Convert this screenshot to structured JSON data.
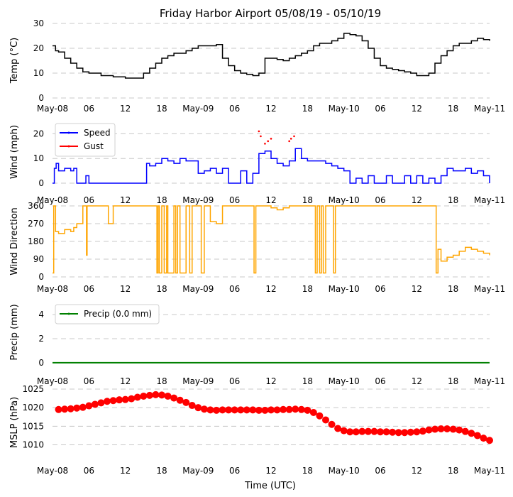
{
  "chart_data": {
    "title": "Friday Harbor Airport 05/08/19 - 05/10/19",
    "xlabel": "Time (UTC)",
    "x_ticks": [
      "May-08",
      "06",
      "12",
      "18",
      "May-09",
      "06",
      "12",
      "18",
      "May-10",
      "06",
      "12",
      "18",
      "May-11"
    ],
    "x_range_hours": [
      0,
      72
    ],
    "panels": [
      {
        "id": "temp",
        "type": "line",
        "ylabel": "Temp (°C)",
        "ylim": [
          0,
          30
        ],
        "yticks": [
          0,
          10,
          20,
          30
        ],
        "grid": true,
        "color": "#000000",
        "series": [
          {
            "x": [
              0,
              0.5,
              1,
              2,
              3,
              4,
              5,
              6,
              7,
              8,
              9,
              10,
              11,
              12,
              13,
              14,
              15,
              16,
              17,
              18,
              19,
              20,
              21,
              22,
              23,
              24,
              25,
              26,
              27,
              28,
              29,
              30,
              31,
              32,
              33,
              34,
              35,
              36,
              37,
              38,
              39,
              40,
              41,
              42,
              43,
              44,
              45,
              46,
              47,
              48,
              49,
              50,
              51,
              52,
              53,
              54,
              55,
              56,
              57,
              58,
              59,
              60,
              61,
              62,
              63,
              64,
              65,
              66,
              67,
              68,
              69,
              70,
              71,
              72
            ],
            "y": [
              21,
              19,
              18.5,
              16,
              14,
              12,
              10.5,
              10,
              10,
              9,
              9,
              8.5,
              8.5,
              8,
              8,
              8,
              10,
              12,
              14,
              16,
              17,
              18,
              18,
              19,
              20,
              21,
              21,
              21,
              21.5,
              16,
              13,
              11,
              10,
              9.5,
              9,
              10,
              16,
              16,
              15.5,
              15,
              16,
              17,
              18,
              19,
              21,
              22,
              22,
              23,
              24,
              26,
              25.5,
              25,
              23,
              20,
              16,
              13,
              12,
              11.5,
              11,
              10.5,
              10,
              9,
              9,
              10,
              14,
              17,
              19,
              21,
              22,
              22,
              23,
              24,
              23.5,
              23
            ]
          }
        ]
      },
      {
        "id": "wind",
        "type": "line",
        "ylabel": "Wind (mph)",
        "ylim": [
          0,
          25
        ],
        "yticks": [
          0,
          10,
          20
        ],
        "grid": true,
        "legend_position": "top-left",
        "series": [
          {
            "name": "Speed",
            "color": "#0000ff",
            "x": [
              0,
              0.3,
              0.6,
              1,
              2,
              3,
              3.5,
              4,
              5,
              5.5,
              6,
              6.2,
              7,
              9,
              11,
              13,
              15,
              15.5,
              16,
              17,
              18,
              19,
              20,
              21,
              22,
              23,
              24,
              25,
              26,
              27,
              28,
              29,
              30,
              31,
              32,
              33,
              34,
              35,
              36,
              37,
              38,
              39,
              40,
              41,
              42,
              43,
              44,
              45,
              46,
              47,
              48,
              49,
              50,
              51,
              52,
              53,
              54,
              55,
              56,
              57,
              58,
              59,
              60,
              61,
              62,
              63,
              64,
              65,
              66,
              67,
              68,
              69,
              70,
              71,
              72
            ],
            "y": [
              0,
              6,
              8,
              5,
              6,
              5,
              6,
              0,
              0,
              3,
              0,
              0,
              0,
              0,
              0,
              0,
              0,
              8,
              7,
              8,
              10,
              9,
              8,
              10,
              9,
              9,
              4,
              5,
              6,
              4,
              6,
              0,
              0,
              5,
              0,
              4,
              12,
              13,
              10,
              8,
              7,
              9,
              14,
              10,
              9,
              9,
              9,
              8,
              7,
              6,
              5,
              0,
              2,
              0,
              3,
              0,
              0,
              3,
              0,
              0,
              3,
              0,
              3,
              0,
              2,
              0,
              3,
              6,
              5,
              5,
              6,
              4,
              5,
              3,
              0
            ]
          },
          {
            "name": "Gust",
            "color": "#ff0000",
            "style": "points",
            "x": [
              34,
              34.3,
              35,
              35.5,
              36,
              39,
              39.3,
              39.8
            ],
            "y": [
              21,
              19,
              16,
              17,
              18,
              17,
              18,
              19
            ]
          }
        ]
      },
      {
        "id": "direction",
        "type": "line",
        "ylabel": "Wind Direction",
        "ylim": [
          0,
          360
        ],
        "yticks": [
          0,
          90,
          180,
          270,
          360
        ],
        "grid": true,
        "color": "#ffa500",
        "series": [
          {
            "x": [
              0,
              0.2,
              0.5,
              1,
              2,
              3,
              3.5,
              4,
              5,
              5.5,
              5.6,
              5.7,
              6,
              9,
              9.2,
              9.6,
              10,
              14,
              17,
              17.2,
              17.4,
              17.6,
              18,
              18.4,
              18.8,
              19,
              20,
              20.3,
              20.6,
              21,
              22,
              22.3,
              22.6,
              23,
              24,
              24.5,
              25,
              26,
              27,
              27.5,
              28,
              29,
              30,
              33,
              33.2,
              33.5,
              34,
              36,
              37,
              38,
              38.5,
              39,
              42,
              43,
              43.3,
              43.6,
              44,
              44.3,
              44.6,
              45,
              46,
              46.3,
              46.6,
              47,
              48,
              52,
              53,
              60,
              63,
              63.2,
              63.5,
              64,
              65,
              66,
              67,
              68,
              69,
              70,
              71,
              72
            ],
            "y": [
              20,
              360,
              230,
              220,
              240,
              230,
              250,
              270,
              360,
              360,
              110,
              360,
              360,
              360,
              270,
              270,
              360,
              360,
              360,
              20,
              360,
              20,
              360,
              20,
              360,
              20,
              360,
              20,
              360,
              20,
              360,
              360,
              20,
              360,
              360,
              20,
              360,
              280,
              270,
              270,
              360,
              360,
              360,
              360,
              20,
              360,
              360,
              350,
              340,
              350,
              350,
              360,
              360,
              360,
              20,
              360,
              20,
              360,
              20,
              360,
              360,
              20,
              360,
              360,
              360,
              360,
              360,
              360,
              360,
              20,
              140,
              80,
              100,
              110,
              130,
              150,
              140,
              130,
              120,
              110
            ]
          }
        ]
      },
      {
        "id": "precip",
        "type": "line",
        "ylabel": "Precip (mm)",
        "ylim": [
          -0.3,
          5
        ],
        "yticks": [
          0,
          2,
          4
        ],
        "grid": true,
        "legend_position": "top-left",
        "series": [
          {
            "name": "Precip (0.0 mm)",
            "color": "#008000",
            "x": [
              0,
              72
            ],
            "y": [
              0,
              0
            ]
          }
        ]
      },
      {
        "id": "mslp",
        "type": "scatter",
        "ylabel": "MSLP (hPa)",
        "ylim": [
          1008,
          1025
        ],
        "yticks": [
          1010,
          1015,
          1020,
          1025
        ],
        "grid": true,
        "color": "#ff0000",
        "series": [
          {
            "x": [
              1,
              2,
              3,
              4,
              5,
              6,
              7,
              8,
              9,
              10,
              11,
              12,
              13,
              14,
              15,
              16,
              17,
              18,
              19,
              20,
              21,
              22,
              23,
              24,
              25,
              26,
              27,
              28,
              29,
              30,
              31,
              32,
              33,
              34,
              35,
              36,
              37,
              38,
              39,
              40,
              41,
              42,
              43,
              44,
              45,
              46,
              47,
              48,
              49,
              50,
              51,
              52,
              53,
              54,
              55,
              56,
              57,
              58,
              59,
              60,
              61,
              62,
              63,
              64,
              65,
              66,
              67,
              68,
              69,
              70,
              71,
              72
            ],
            "y": [
              1019.5,
              1019.6,
              1019.7,
              1019.9,
              1020.1,
              1020.5,
              1020.9,
              1021.3,
              1021.7,
              1021.9,
              1022.1,
              1022.2,
              1022.4,
              1022.8,
              1023.1,
              1023.3,
              1023.5,
              1023.4,
              1023.1,
              1022.6,
              1022.0,
              1021.4,
              1020.6,
              1020.0,
              1019.6,
              1019.4,
              1019.3,
              1019.4,
              1019.4,
              1019.4,
              1019.4,
              1019.4,
              1019.4,
              1019.3,
              1019.3,
              1019.4,
              1019.4,
              1019.5,
              1019.5,
              1019.6,
              1019.5,
              1019.3,
              1018.7,
              1017.8,
              1016.7,
              1015.5,
              1014.4,
              1013.8,
              1013.5,
              1013.5,
              1013.6,
              1013.6,
              1013.6,
              1013.5,
              1013.5,
              1013.4,
              1013.3,
              1013.3,
              1013.4,
              1013.5,
              1013.7,
              1014.0,
              1014.2,
              1014.3,
              1014.3,
              1014.2,
              1014.0,
              1013.6,
              1013.1,
              1012.5,
              1011.8,
              1011.2
            ]
          }
        ]
      }
    ]
  }
}
